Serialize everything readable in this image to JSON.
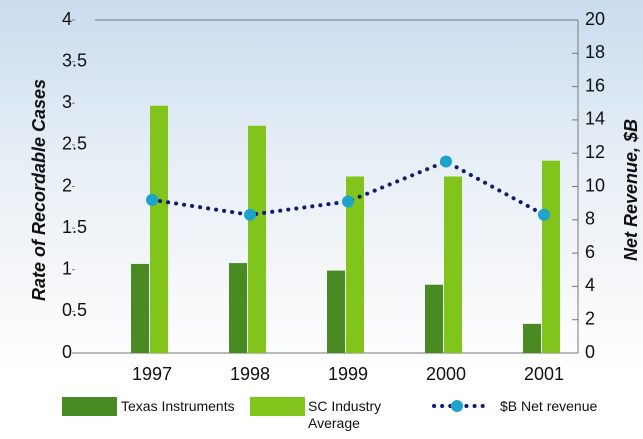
{
  "chart_data": {
    "type": "bar-line",
    "ylabel": "Rate of Recordable Cases",
    "y2label": "Net Revenue, $B",
    "categories": [
      "1997",
      "1998",
      "1999",
      "2000",
      "2001"
    ],
    "series": [
      {
        "name": "Texas Instruments",
        "type": "bar",
        "color": "#4a8a22",
        "values": [
          1.07,
          1.08,
          0.99,
          0.82,
          0.35
        ]
      },
      {
        "name": "SC Industry Average",
        "type": "bar",
        "color": "#80c41c",
        "values": [
          2.97,
          2.73,
          2.12,
          2.12,
          2.31
        ]
      },
      {
        "name": "$B Net revenue",
        "type": "line",
        "axis": "y2",
        "color": "#0f1f6e",
        "marker_color": "#1ea3cc",
        "values": [
          9.2,
          8.3,
          9.1,
          11.5,
          8.3
        ]
      }
    ],
    "ylim": [
      0,
      4
    ],
    "yticks": [
      0,
      0.5,
      1,
      1.5,
      2,
      2.5,
      3,
      3.5,
      4
    ],
    "y2lim": [
      0,
      20
    ],
    "y2ticks": [
      0,
      2,
      4,
      6,
      8,
      10,
      12,
      14,
      16,
      18,
      20
    ]
  }
}
